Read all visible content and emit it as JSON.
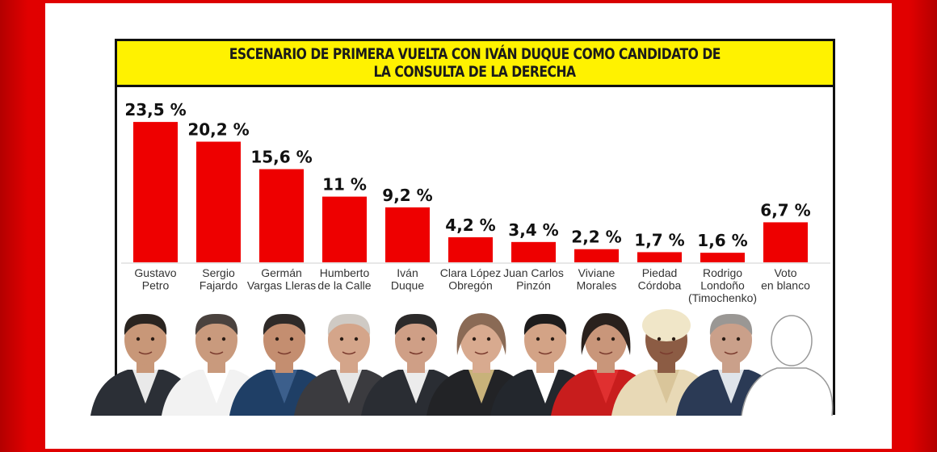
{
  "chart_data": {
    "type": "bar",
    "title_lines": [
      "ESCENARIO DE PRIMERA VUELTA CON IVÁN DUQUE COMO CANDIDATO DE",
      "LA CONSULTA DE LA DERECHA"
    ],
    "categories": [
      [
        "Gustavo",
        "Petro"
      ],
      [
        "Sergio",
        "Fajardo"
      ],
      [
        "Germán",
        "Vargas Lleras"
      ],
      [
        "Humberto",
        "de la Calle"
      ],
      [
        "Iván",
        "Duque"
      ],
      [
        "Clara López",
        "Obregón"
      ],
      [
        "Juan Carlos",
        "Pinzón"
      ],
      [
        "Viviane",
        "Morales"
      ],
      [
        "Piedad",
        "Córdoba"
      ],
      [
        "Rodrigo",
        "Londoño",
        "(Timochenko)"
      ],
      [
        "Voto",
        "en blanco"
      ]
    ],
    "values": [
      23.5,
      20.2,
      15.6,
      11,
      9.2,
      4.2,
      3.4,
      2.2,
      1.7,
      1.6,
      6.7
    ],
    "labels": [
      "23,5 %",
      "20,2 %",
      "15,6 %",
      "11 %",
      "9,2 %",
      "4,2 %",
      "3,4 %",
      "2,2 %",
      "1,7 %",
      "1,6 %",
      "6,7 %"
    ],
    "bar_color": "#ee0000",
    "ylim": [
      0,
      25
    ],
    "xlabel": "",
    "ylabel": "",
    "grid": false,
    "legend": "none"
  },
  "colors": {
    "background": "#d40000",
    "card": "#ffffff",
    "title_band": "#fff200"
  }
}
